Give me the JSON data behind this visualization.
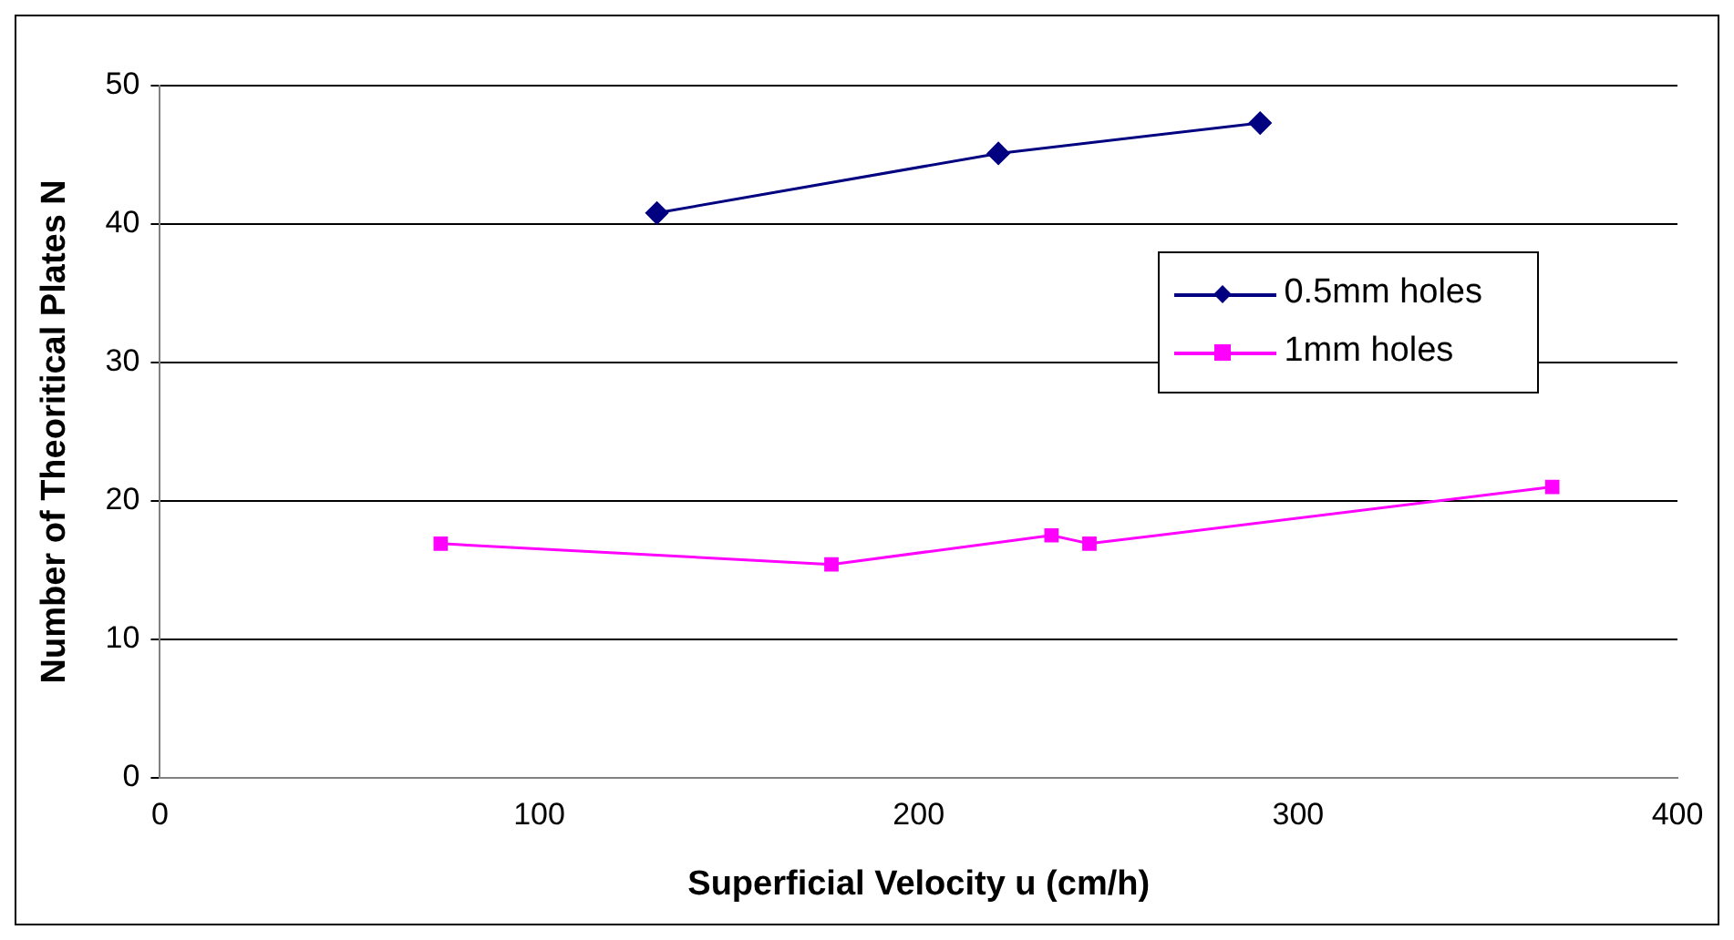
{
  "chart_data": {
    "type": "line",
    "xlabel": "Superficial Velocity u (cm/h)",
    "ylabel": "Number of Theoritical Plates N",
    "series": [
      {
        "name": "0.5mm holes",
        "color": "#000080",
        "marker": "diamond",
        "x": [
          131,
          221,
          290
        ],
        "values": [
          40.8,
          45.1,
          47.3
        ]
      },
      {
        "name": "1mm holes",
        "color": "#ff00ff",
        "marker": "square",
        "x": [
          74,
          177,
          235,
          245,
          367
        ],
        "values": [
          16.9,
          15.4,
          17.5,
          16.9,
          21.0
        ]
      }
    ],
    "xlim": [
      0,
      400
    ],
    "xticks": [
      0,
      100,
      200,
      300,
      400
    ],
    "ylim": [
      0,
      50
    ],
    "yticks": [
      0,
      10,
      20,
      30,
      40,
      50
    ],
    "grid": "y",
    "legend": "top right"
  }
}
